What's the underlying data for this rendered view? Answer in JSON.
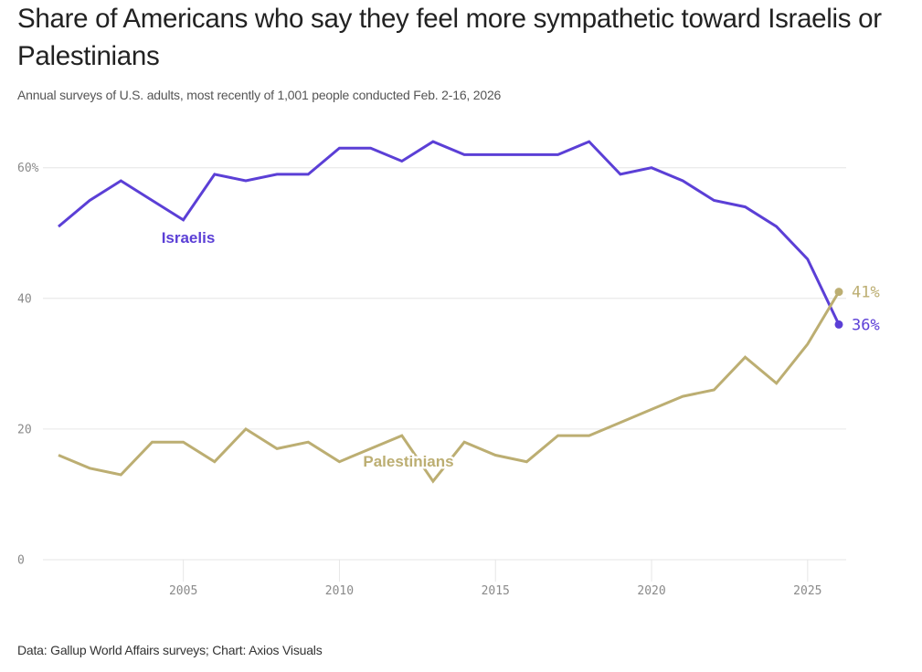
{
  "header": {
    "title": "Share of Americans who say they feel more sympathetic toward Israelis or Palestinians",
    "subtitle": "Annual surveys of U.S. adults, most recently of 1,001 people conducted Feb. 2-16, 2026"
  },
  "footer": {
    "source": "Data: Gallup World Affairs surveys; Chart: Axios Visuals"
  },
  "colors": {
    "israelis": "#5b3fd6",
    "palestinians": "#bcae72",
    "grid": "#e6e6e6",
    "tick_text": "#8a8a8a"
  },
  "chart_data": {
    "type": "line",
    "title": "Share of Americans who say they feel more sympathetic toward Israelis or Palestinians",
    "subtitle": "Annual surveys of U.S. adults, most recently of 1,001 people conducted Feb. 2-16, 2026",
    "xlabel": "",
    "ylabel": "",
    "x": [
      2001,
      2002,
      2003,
      2004,
      2005,
      2006,
      2007,
      2008,
      2009,
      2010,
      2011,
      2012,
      2013,
      2014,
      2015,
      2016,
      2017,
      2018,
      2019,
      2020,
      2021,
      2022,
      2023,
      2024,
      2025,
      2026
    ],
    "series": [
      {
        "name": "Israelis",
        "color": "#5b3fd6",
        "values": [
          51,
          55,
          58,
          55,
          52,
          59,
          58,
          59,
          59,
          63,
          63,
          61,
          64,
          62,
          62,
          62,
          62,
          64,
          59,
          60,
          58,
          55,
          54,
          51,
          46,
          36
        ],
        "end_label": "36%"
      },
      {
        "name": "Palestinians",
        "color": "#bcae72",
        "values": [
          16,
          14,
          13,
          18,
          18,
          15,
          20,
          17,
          18,
          15,
          17,
          19,
          12,
          18,
          16,
          15,
          19,
          19,
          21,
          23,
          25,
          26,
          31,
          27,
          33,
          41
        ],
        "end_label": "41%"
      }
    ],
    "xlim": [
      2001,
      2026
    ],
    "ylim": [
      0,
      65
    ],
    "x_ticks": [
      2005,
      2010,
      2015,
      2020,
      2025
    ],
    "x_tick_labels": [
      "2005",
      "2010",
      "2015",
      "2020",
      "2025"
    ],
    "y_ticks": [
      0,
      20,
      40,
      60
    ],
    "y_tick_labels": [
      "0",
      "20",
      "40",
      "60%"
    ],
    "grid": "horizontal",
    "legend": "inline labels on lines",
    "annotations": [
      "Israelis",
      "Palestinians",
      "41%",
      "36%"
    ]
  }
}
